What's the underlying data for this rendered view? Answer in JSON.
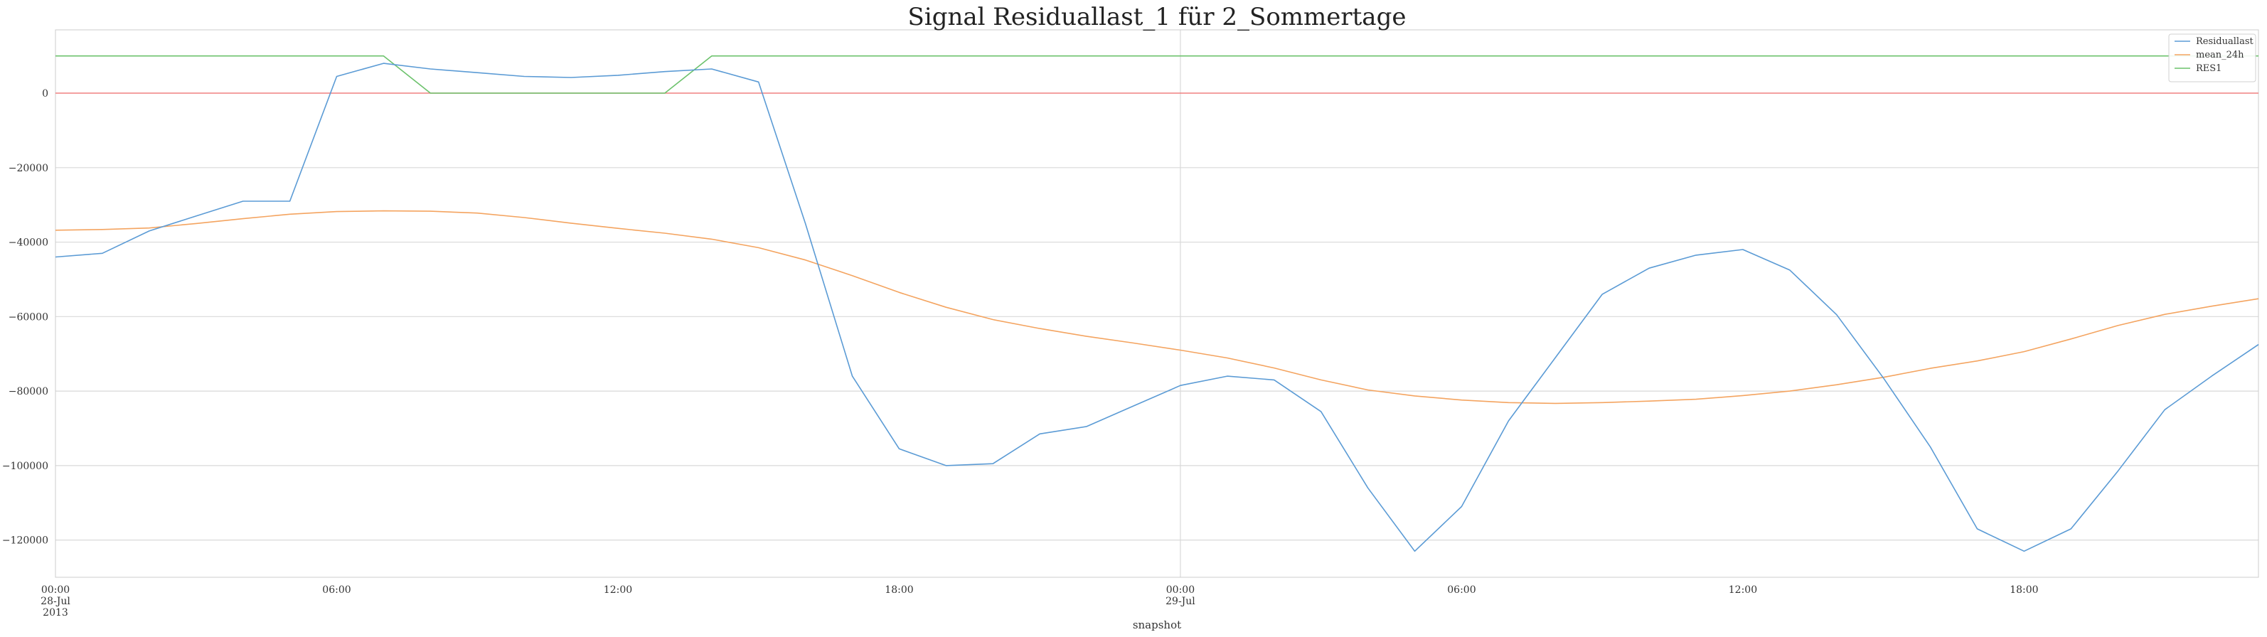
{
  "chart_data": {
    "type": "line",
    "title": "Signal Residuallast_1 für 2_Sommertage",
    "xlabel": "snapshot",
    "ylabel": "",
    "x_hours": [
      0,
      1,
      2,
      3,
      4,
      5,
      6,
      7,
      8,
      9,
      10,
      11,
      12,
      13,
      14,
      15,
      16,
      17,
      18,
      19,
      20,
      21,
      22,
      23,
      24,
      25,
      26,
      27,
      28,
      29,
      30,
      31,
      32,
      33,
      34,
      35,
      36,
      37,
      38,
      39,
      40,
      41,
      42,
      43,
      44,
      45,
      46,
      47
    ],
    "ylim": [
      -130000,
      17000
    ],
    "yticks": [
      {
        "value": 0,
        "label": "0"
      },
      {
        "value": -20000,
        "label": "−20000"
      },
      {
        "value": -40000,
        "label": "−40000"
      },
      {
        "value": -60000,
        "label": "−60000"
      },
      {
        "value": -80000,
        "label": "−80000"
      },
      {
        "value": -100000,
        "label": "−100000"
      },
      {
        "value": -120000,
        "label": "−120000"
      }
    ],
    "xticks": [
      {
        "hour": 0,
        "lines": [
          "00:00",
          "28-Jul",
          "2013"
        ]
      },
      {
        "hour": 6,
        "lines": [
          "06:00"
        ]
      },
      {
        "hour": 12,
        "lines": [
          "12:00"
        ]
      },
      {
        "hour": 18,
        "lines": [
          "18:00"
        ]
      },
      {
        "hour": 24,
        "lines": [
          "00:00",
          "29-Jul"
        ]
      },
      {
        "hour": 30,
        "lines": [
          "06:00"
        ]
      },
      {
        "hour": 36,
        "lines": [
          "12:00"
        ]
      },
      {
        "hour": 42,
        "lines": [
          "18:00"
        ]
      }
    ],
    "grid": true,
    "legend_position": "top-right",
    "series": [
      {
        "name": "Residuallast",
        "color": "#5b9bd5",
        "values": [
          -44000,
          -43000,
          -37000,
          -33000,
          -29000,
          -29000,
          4500,
          8000,
          6500,
          5500,
          4500,
          4200,
          4800,
          5800,
          6500,
          3000,
          -35000,
          -76000,
          -95500,
          -100000,
          -99500,
          -91500,
          -89500,
          -84000,
          -78500,
          -76000,
          -77000,
          -85500,
          -106000,
          -123000,
          -111000,
          -88000,
          -71000,
          -54000,
          -47000,
          -43500,
          -42000,
          -47500,
          -59500,
          -76500,
          -95000,
          -117000,
          -123000,
          -117000,
          -101500,
          -85000,
          -76000,
          -67500
        ]
      },
      {
        "name": "mean_24h",
        "color": "#f4a460",
        "values": [
          -36800,
          -36600,
          -36200,
          -35000,
          -33700,
          -32500,
          -31800,
          -31600,
          -31700,
          -32200,
          -33400,
          -34900,
          -36300,
          -37600,
          -39200,
          -41500,
          -44800,
          -49000,
          -53500,
          -57500,
          -60800,
          -63200,
          -65300,
          -67100,
          -69000,
          -71100,
          -73800,
          -77000,
          -79700,
          -81300,
          -82400,
          -83100,
          -83300,
          -83100,
          -82700,
          -82200,
          -81200,
          -80000,
          -78300,
          -76300,
          -73900,
          -71900,
          -69400,
          -66000,
          -62400,
          -59400,
          -57200,
          -55200
        ]
      },
      {
        "name": "RES1",
        "color": "#6cc26c",
        "values": [
          10000,
          10000,
          10000,
          10000,
          10000,
          10000,
          10000,
          10000,
          0,
          0,
          0,
          0,
          0,
          0,
          10000,
          10000,
          10000,
          10000,
          10000,
          10000,
          10000,
          10000,
          10000,
          10000,
          10000,
          10000,
          10000,
          10000,
          10000,
          10000,
          10000,
          10000,
          10000,
          10000,
          10000,
          10000,
          10000,
          10000,
          10000,
          10000,
          10000,
          10000,
          10000,
          10000,
          10000,
          10000,
          10000,
          10000
        ]
      }
    ],
    "zero_line": {
      "value": 0,
      "color": "#f08080"
    }
  }
}
